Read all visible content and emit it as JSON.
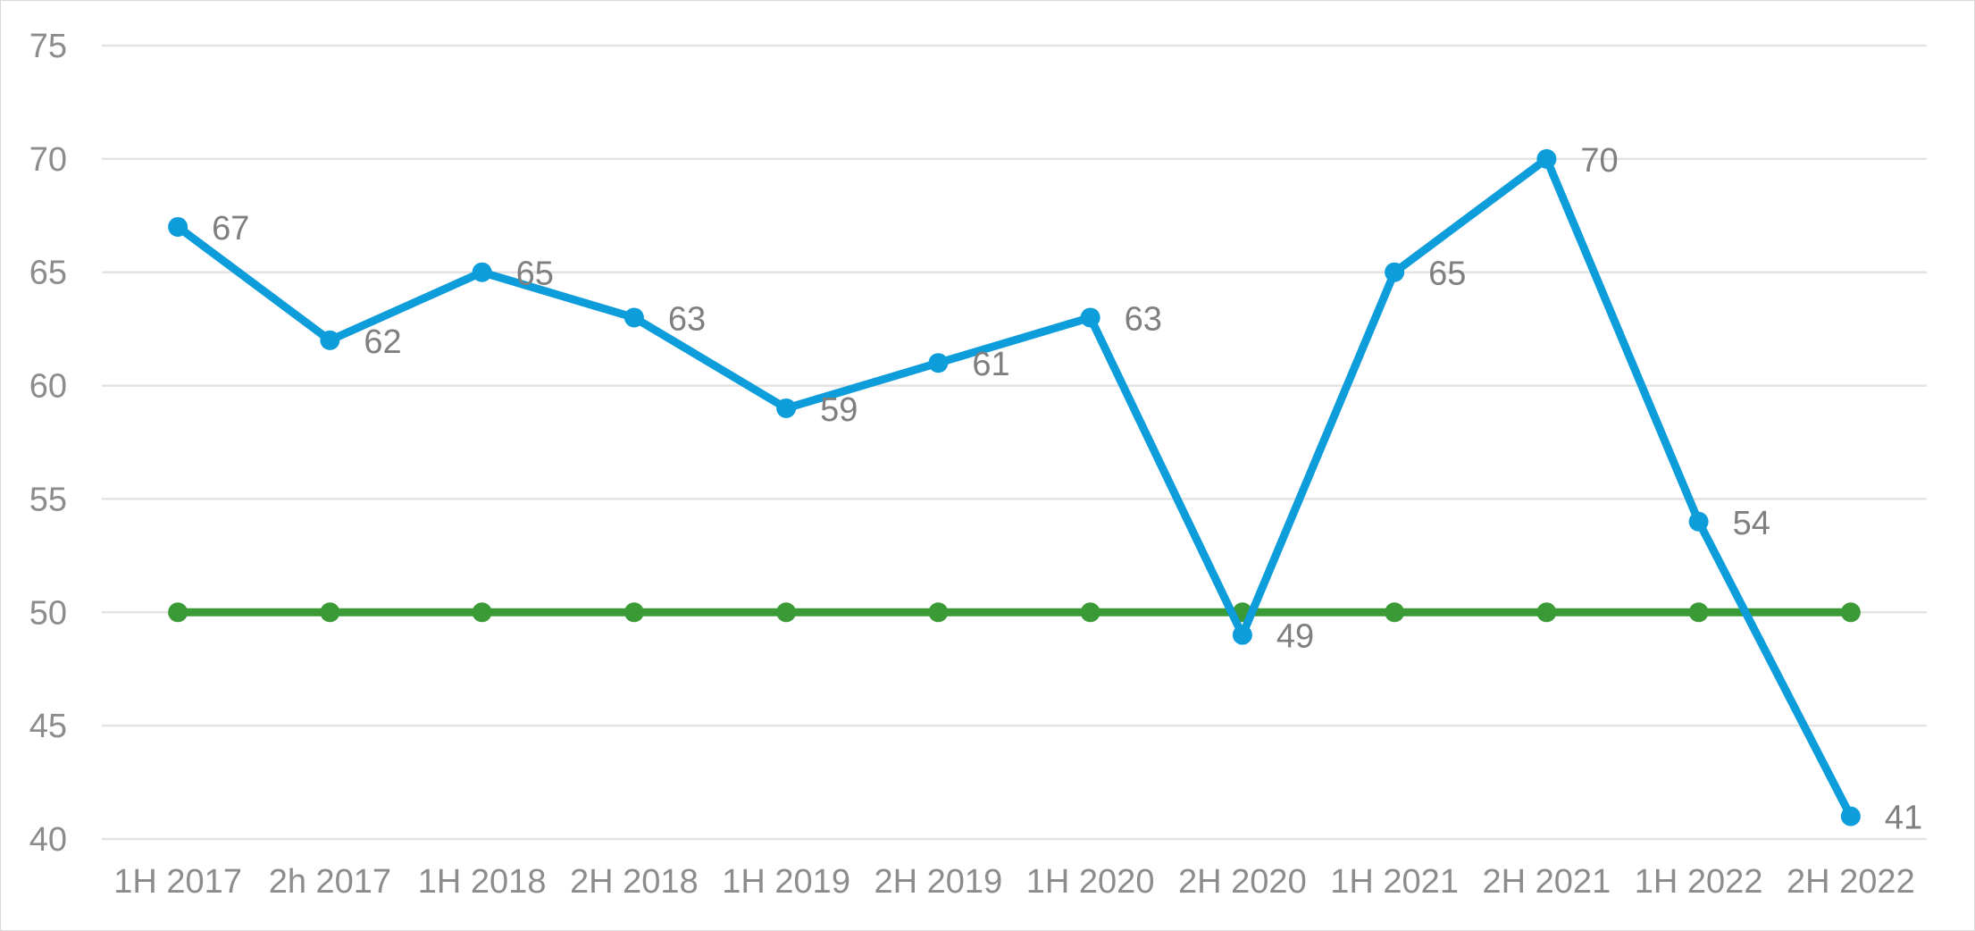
{
  "chart_data": {
    "type": "line",
    "categories": [
      "1H 2017",
      "2h 2017",
      "1H 2018",
      "2H 2018",
      "1H 2019",
      "2H 2019",
      "1H 2020",
      "2H 2020",
      "1H 2021",
      "2H 2021",
      "1H 2022",
      "2H 2022"
    ],
    "series": [
      {
        "values": [
          67,
          62,
          65,
          63,
          59,
          61,
          63,
          49,
          65,
          70,
          54,
          41
        ],
        "color": "#0d9ddb",
        "data_labels": true
      },
      {
        "values": [
          50,
          50,
          50,
          50,
          50,
          50,
          50,
          50,
          50,
          50,
          50,
          50
        ],
        "color": "#3a9a35",
        "data_labels": false
      }
    ],
    "ylim": [
      40,
      75
    ],
    "yticks": [
      40,
      45,
      50,
      55,
      60,
      65,
      70,
      75
    ],
    "grid": true,
    "legend": "none",
    "title": "",
    "xlabel": "",
    "ylabel": ""
  }
}
